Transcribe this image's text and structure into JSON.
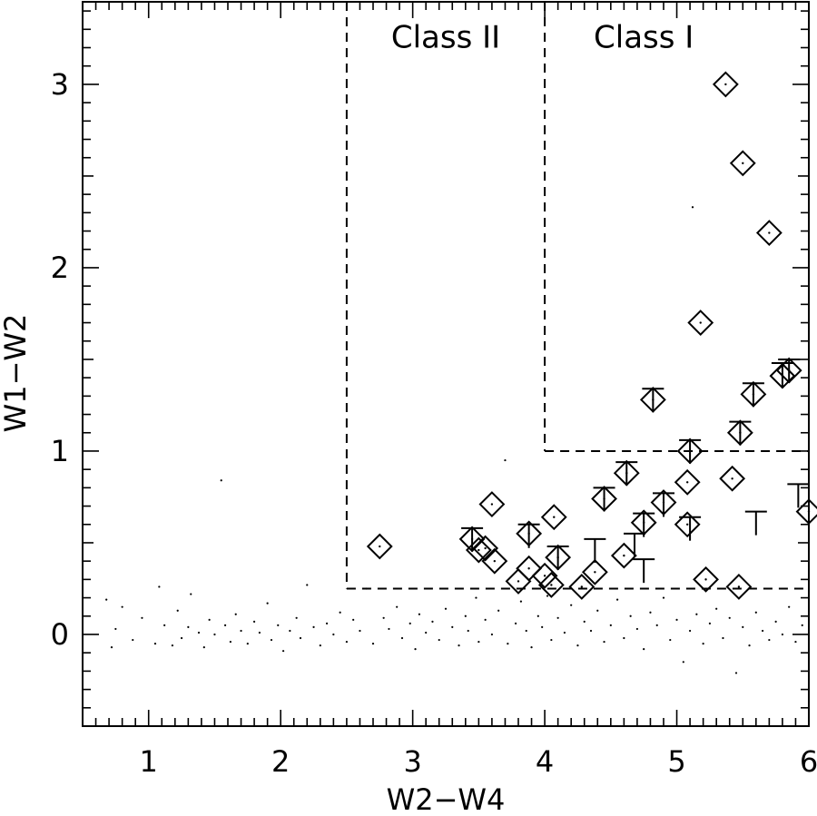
{
  "chart_data": {
    "type": "scatter",
    "title": "",
    "xlabel": "W2−W4",
    "ylabel": "W1−W2",
    "xlim": [
      0.5,
      6.0
    ],
    "ylim": [
      -0.5,
      3.45
    ],
    "x_ticks": [
      1,
      2,
      3,
      4,
      5,
      6
    ],
    "x_tick_labels": [
      "1",
      "2",
      "3",
      "4",
      "5",
      "6"
    ],
    "y_ticks": [
      0,
      1,
      2,
      3
    ],
    "y_tick_labels": [
      "0",
      "1",
      "2",
      "3"
    ],
    "grid": false,
    "region_labels": [
      {
        "text": "Class II",
        "x": 3.25,
        "y": 3.26
      },
      {
        "text": "Class I",
        "x": 4.75,
        "y": 3.26
      }
    ],
    "boundaries": [
      {
        "name": "class-ii-left",
        "points": [
          [
            2.5,
            3.45
          ],
          [
            2.5,
            0.25
          ]
        ]
      },
      {
        "name": "class-ii-bottom",
        "points": [
          [
            2.5,
            0.25
          ],
          [
            6.0,
            0.25
          ]
        ]
      },
      {
        "name": "class-i-left",
        "points": [
          [
            4.0,
            3.45
          ],
          [
            4.0,
            1.0
          ]
        ]
      },
      {
        "name": "class-i-bottom",
        "points": [
          [
            4.0,
            1.0
          ],
          [
            6.0,
            1.0
          ]
        ]
      }
    ],
    "diamonds": [
      [
        2.75,
        0.48
      ],
      [
        3.45,
        0.52
      ],
      [
        3.5,
        0.46
      ],
      [
        3.55,
        0.47
      ],
      [
        3.62,
        0.4
      ],
      [
        3.6,
        0.71
      ],
      [
        3.8,
        0.29
      ],
      [
        3.88,
        0.36
      ],
      [
        3.88,
        0.55
      ],
      [
        4.0,
        0.32
      ],
      [
        4.05,
        0.27
      ],
      [
        4.07,
        0.64
      ],
      [
        4.1,
        0.42
      ],
      [
        4.28,
        0.26
      ],
      [
        4.38,
        0.34
      ],
      [
        4.45,
        0.74
      ],
      [
        4.6,
        0.43
      ],
      [
        4.62,
        0.88
      ],
      [
        4.75,
        0.61
      ],
      [
        4.82,
        1.28
      ],
      [
        4.9,
        0.72
      ],
      [
        5.08,
        0.83
      ],
      [
        5.08,
        0.6
      ],
      [
        5.1,
        1.0
      ],
      [
        5.18,
        1.7
      ],
      [
        5.22,
        0.3
      ],
      [
        5.37,
        3.0
      ],
      [
        5.42,
        0.85
      ],
      [
        5.48,
        1.1
      ],
      [
        5.47,
        0.26
      ],
      [
        5.5,
        2.57
      ],
      [
        5.58,
        1.31
      ],
      [
        5.7,
        2.19
      ],
      [
        5.8,
        1.41
      ],
      [
        5.85,
        1.44
      ],
      [
        6.0,
        0.67
      ]
    ],
    "upper_limits": [
      [
        3.45,
        0.58
      ],
      [
        3.88,
        0.6
      ],
      [
        4.1,
        0.48
      ],
      [
        4.45,
        0.8
      ],
      [
        4.62,
        0.94
      ],
      [
        4.75,
        0.66
      ],
      [
        4.82,
        1.34
      ],
      [
        4.9,
        0.77
      ],
      [
        5.1,
        1.06
      ],
      [
        5.1,
        0.64
      ],
      [
        5.48,
        1.16
      ],
      [
        5.58,
        1.37
      ],
      [
        5.8,
        1.48
      ],
      [
        5.85,
        1.5
      ],
      [
        4.38,
        0.52
      ],
      [
        4.68,
        0.55
      ],
      [
        4.75,
        0.41
      ],
      [
        5.6,
        0.67
      ],
      [
        5.92,
        0.82
      ]
    ],
    "field_points": [
      [
        0.68,
        0.19
      ],
      [
        0.72,
        -0.07
      ],
      [
        0.75,
        0.03
      ],
      [
        0.8,
        0.15
      ],
      [
        0.88,
        -0.03
      ],
      [
        0.95,
        0.09
      ],
      [
        1.05,
        -0.05
      ],
      [
        1.08,
        0.26
      ],
      [
        1.12,
        0.05
      ],
      [
        1.18,
        -0.06
      ],
      [
        1.22,
        0.13
      ],
      [
        1.25,
        -0.02
      ],
      [
        1.3,
        0.04
      ],
      [
        1.32,
        0.22
      ],
      [
        1.38,
        0.01
      ],
      [
        1.42,
        -0.07
      ],
      [
        1.46,
        0.08
      ],
      [
        1.5,
        0.0
      ],
      [
        1.55,
        0.84
      ],
      [
        1.58,
        0.05
      ],
      [
        1.62,
        -0.04
      ],
      [
        1.66,
        0.11
      ],
      [
        1.7,
        0.02
      ],
      [
        1.75,
        -0.05
      ],
      [
        1.8,
        0.07
      ],
      [
        1.84,
        0.01
      ],
      [
        1.9,
        0.17
      ],
      [
        1.93,
        -0.03
      ],
      [
        1.98,
        0.05
      ],
      [
        2.02,
        -0.09
      ],
      [
        2.07,
        0.02
      ],
      [
        2.12,
        0.09
      ],
      [
        2.15,
        -0.02
      ],
      [
        2.2,
        0.27
      ],
      [
        2.25,
        0.04
      ],
      [
        2.3,
        -0.06
      ],
      [
        2.35,
        0.06
      ],
      [
        2.4,
        0.0
      ],
      [
        2.45,
        0.12
      ],
      [
        2.5,
        -0.04
      ],
      [
        2.55,
        0.08
      ],
      [
        2.6,
        0.02
      ],
      [
        2.65,
        0.25
      ],
      [
        2.7,
        -0.05
      ],
      [
        2.78,
        0.09
      ],
      [
        2.82,
        0.03
      ],
      [
        2.88,
        0.15
      ],
      [
        2.92,
        -0.02
      ],
      [
        2.98,
        0.06
      ],
      [
        3.02,
        -0.08
      ],
      [
        3.05,
        0.11
      ],
      [
        3.1,
        0.01
      ],
      [
        3.15,
        0.07
      ],
      [
        3.2,
        -0.03
      ],
      [
        3.25,
        0.14
      ],
      [
        3.3,
        0.04
      ],
      [
        3.35,
        -0.06
      ],
      [
        3.4,
        0.1
      ],
      [
        3.42,
        0.02
      ],
      [
        3.48,
        0.2
      ],
      [
        3.5,
        -0.04
      ],
      [
        3.55,
        0.08
      ],
      [
        3.6,
        0.0
      ],
      [
        3.65,
        0.13
      ],
      [
        3.7,
        0.95
      ],
      [
        3.72,
        -0.05
      ],
      [
        3.78,
        0.06
      ],
      [
        3.82,
        0.18
      ],
      [
        3.86,
        0.02
      ],
      [
        3.9,
        -0.07
      ],
      [
        3.95,
        0.1
      ],
      [
        3.98,
        0.04
      ],
      [
        4.02,
        0.21
      ],
      [
        4.05,
        -0.03
      ],
      [
        4.1,
        0.09
      ],
      [
        4.15,
        0.01
      ],
      [
        4.2,
        0.16
      ],
      [
        4.25,
        -0.06
      ],
      [
        4.3,
        0.07
      ],
      [
        4.35,
        0.02
      ],
      [
        4.4,
        0.13
      ],
      [
        4.45,
        -0.04
      ],
      [
        4.5,
        0.05
      ],
      [
        4.55,
        0.19
      ],
      [
        4.6,
        -0.02
      ],
      [
        4.65,
        0.1
      ],
      [
        4.7,
        0.03
      ],
      [
        4.75,
        -0.08
      ],
      [
        4.8,
        0.12
      ],
      [
        4.85,
        0.05
      ],
      [
        4.9,
        0.2
      ],
      [
        4.95,
        -0.03
      ],
      [
        5.0,
        0.08
      ],
      [
        5.05,
        -0.15
      ],
      [
        5.1,
        0.02
      ],
      [
        5.12,
        2.33
      ],
      [
        5.15,
        0.11
      ],
      [
        5.2,
        -0.05
      ],
      [
        5.25,
        0.06
      ],
      [
        5.3,
        0.14
      ],
      [
        5.35,
        -0.02
      ],
      [
        5.4,
        0.09
      ],
      [
        5.45,
        -0.21
      ],
      [
        5.5,
        0.04
      ],
      [
        5.55,
        -0.06
      ],
      [
        5.6,
        0.12
      ],
      [
        5.65,
        0.02
      ],
      [
        5.7,
        -0.03
      ],
      [
        5.75,
        0.07
      ],
      [
        5.8,
        0.0
      ],
      [
        5.85,
        0.15
      ],
      [
        5.9,
        -0.04
      ],
      [
        5.95,
        0.05
      ]
    ]
  }
}
